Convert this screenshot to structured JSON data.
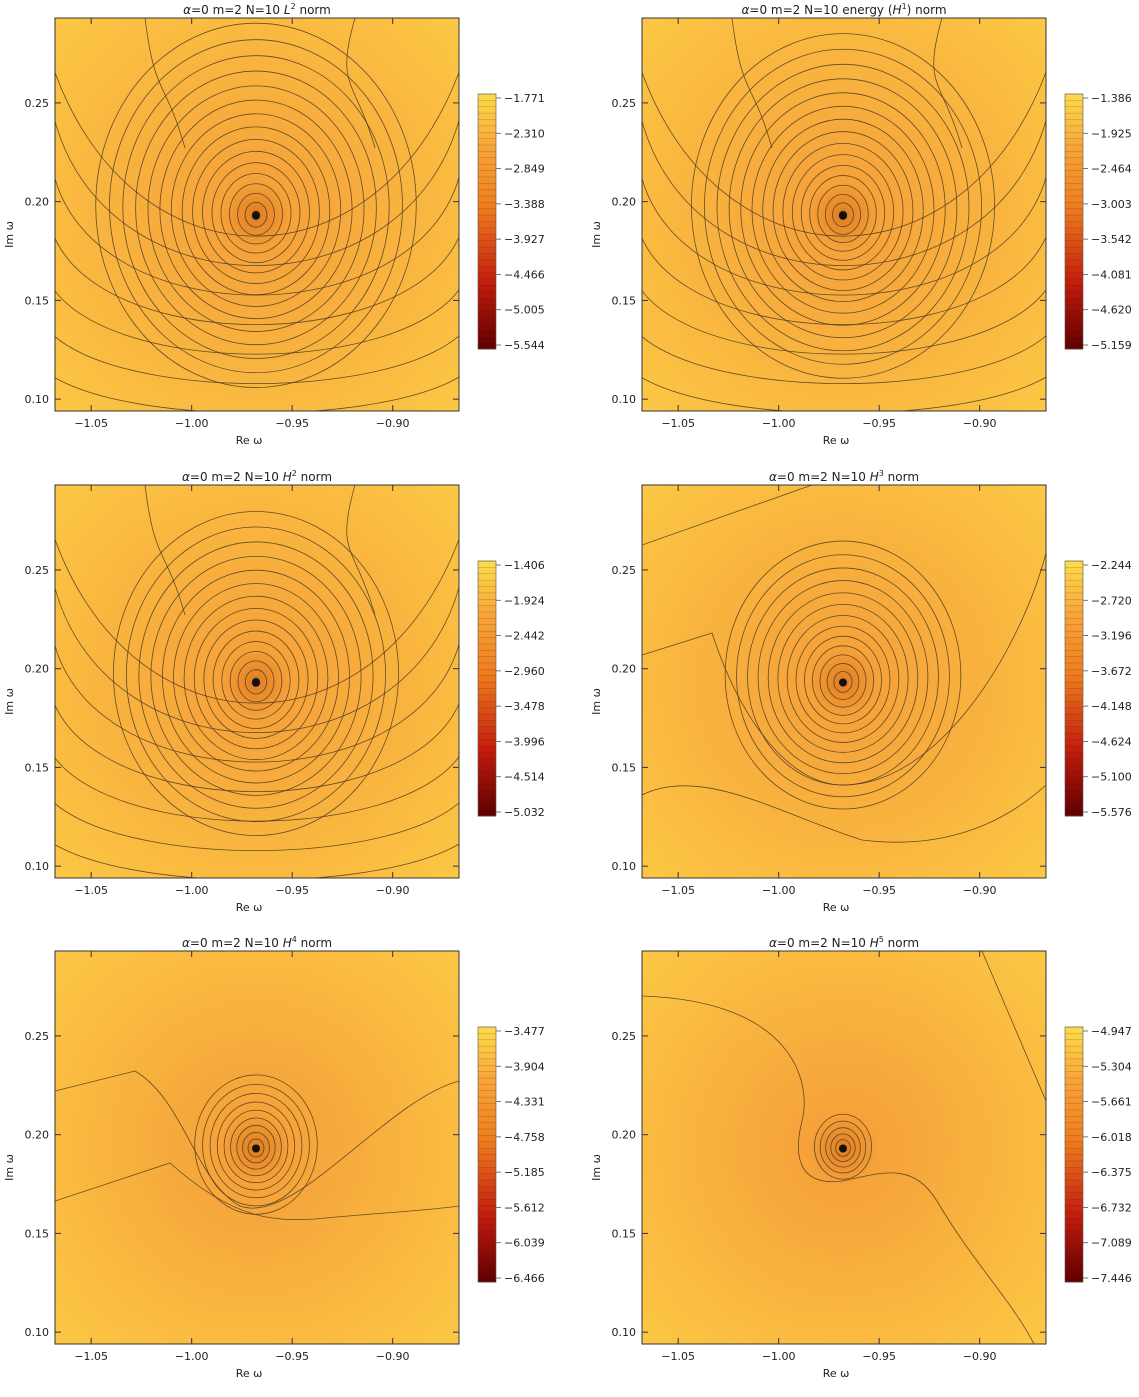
{
  "figure": {
    "shared": {
      "header_prefix": [
        "α",
        "=0   m=2   N=10   "
      ],
      "xlabel": "Re ω",
      "ylabel": "Im ω",
      "x_ticks": [
        "−1.05",
        "−1.00",
        "−0.95",
        "−0.90"
      ],
      "y_ticks": [
        "0.10",
        "0.15",
        "0.20",
        "0.25"
      ]
    },
    "colors": {
      "light": "#FDD94A",
      "mid": "#F9A53A",
      "orange": "#EE7B1E",
      "red": "#C21B0C",
      "dark": "#640000",
      "contour": "#4a3a20"
    }
  },
  "chart_data": [
    {
      "type": "contour",
      "norm_label": [
        "",
        "L",
        "2",
        " norm"
      ],
      "xlabel": "Re ω",
      "ylabel": "Im ω",
      "xlim": [
        -1.068,
        -0.867
      ],
      "ylim": [
        0.094,
        0.293
      ],
      "x_ticks": [
        -1.05,
        -1.0,
        -0.95,
        -0.9
      ],
      "y_ticks": [
        0.1,
        0.15,
        0.2,
        0.25
      ],
      "minimum": {
        "re": -0.968,
        "im": 0.193
      },
      "legend_values": [
        "−1.771",
        "−2.310",
        "−2.849",
        "−3.388",
        "−3.927",
        "−4.466",
        "−5.005",
        "−5.544"
      ],
      "levels_range": [
        -5.544,
        -1.771
      ]
    },
    {
      "type": "contour",
      "norm_label": [
        "energy (",
        "H",
        "1",
        ") norm"
      ],
      "xlabel": "Re ω",
      "ylabel": "Im ω",
      "xlim": [
        -1.068,
        -0.867
      ],
      "ylim": [
        0.094,
        0.293
      ],
      "x_ticks": [
        -1.05,
        -1.0,
        -0.95,
        -0.9
      ],
      "y_ticks": [
        0.1,
        0.15,
        0.2,
        0.25
      ],
      "minimum": {
        "re": -0.968,
        "im": 0.193
      },
      "legend_values": [
        "−1.386",
        "−1.925",
        "−2.464",
        "−3.003",
        "−3.542",
        "−4.081",
        "−4.620",
        "−5.159"
      ],
      "levels_range": [
        -5.159,
        -1.386
      ]
    },
    {
      "type": "contour",
      "norm_label": [
        "",
        "H",
        "2",
        " norm"
      ],
      "xlabel": "Re ω",
      "ylabel": "Im ω",
      "xlim": [
        -1.068,
        -0.867
      ],
      "ylim": [
        0.094,
        0.293
      ],
      "x_ticks": [
        -1.05,
        -1.0,
        -0.95,
        -0.9
      ],
      "y_ticks": [
        0.1,
        0.15,
        0.2,
        0.25
      ],
      "minimum": {
        "re": -0.968,
        "im": 0.193
      },
      "legend_values": [
        "−1.406",
        "−1.924",
        "−2.442",
        "−2.960",
        "−3.478",
        "−3.996",
        "−4.514",
        "−5.032"
      ],
      "levels_range": [
        -5.032,
        -1.406
      ]
    },
    {
      "type": "contour",
      "norm_label": [
        "",
        "H",
        "3",
        " norm"
      ],
      "xlabel": "Re ω",
      "ylabel": "Im ω",
      "xlim": [
        -1.068,
        -0.867
      ],
      "ylim": [
        0.094,
        0.293
      ],
      "x_ticks": [
        -1.05,
        -1.0,
        -0.95,
        -0.9
      ],
      "y_ticks": [
        0.1,
        0.15,
        0.2,
        0.25
      ],
      "minimum": {
        "re": -0.968,
        "im": 0.193
      },
      "legend_values": [
        "−2.244",
        "−2.720",
        "−3.196",
        "−3.672",
        "−4.148",
        "−4.624",
        "−5.100",
        "−5.576"
      ],
      "levels_range": [
        -5.576,
        -2.244
      ]
    },
    {
      "type": "contour",
      "norm_label": [
        "",
        "H",
        "4",
        " norm"
      ],
      "xlabel": "Re ω",
      "ylabel": "Im ω",
      "xlim": [
        -1.068,
        -0.867
      ],
      "ylim": [
        0.094,
        0.293
      ],
      "x_ticks": [
        -1.05,
        -1.0,
        -0.95,
        -0.9
      ],
      "y_ticks": [
        0.1,
        0.15,
        0.2,
        0.25
      ],
      "minimum": {
        "re": -0.968,
        "im": 0.193
      },
      "legend_values": [
        "−3.477",
        "−3.904",
        "−4.331",
        "−4.758",
        "−5.185",
        "−5.612",
        "−6.039",
        "−6.466"
      ],
      "levels_range": [
        -6.466,
        -3.477
      ]
    },
    {
      "type": "contour",
      "norm_label": [
        "",
        "H",
        "5",
        " norm"
      ],
      "xlabel": "Re ω",
      "ylabel": "Im ω",
      "xlim": [
        -1.068,
        -0.867
      ],
      "ylim": [
        0.094,
        0.293
      ],
      "x_ticks": [
        -1.05,
        -1.0,
        -0.95,
        -0.9
      ],
      "y_ticks": [
        0.1,
        0.15,
        0.2,
        0.25
      ],
      "minimum": {
        "re": -0.968,
        "im": 0.193
      },
      "legend_values": [
        "−4.947",
        "−5.304",
        "−5.661",
        "−6.018",
        "−6.375",
        "−6.732",
        "−7.089",
        "−7.446"
      ],
      "levels_range": [
        -7.446,
        -4.947
      ]
    }
  ]
}
